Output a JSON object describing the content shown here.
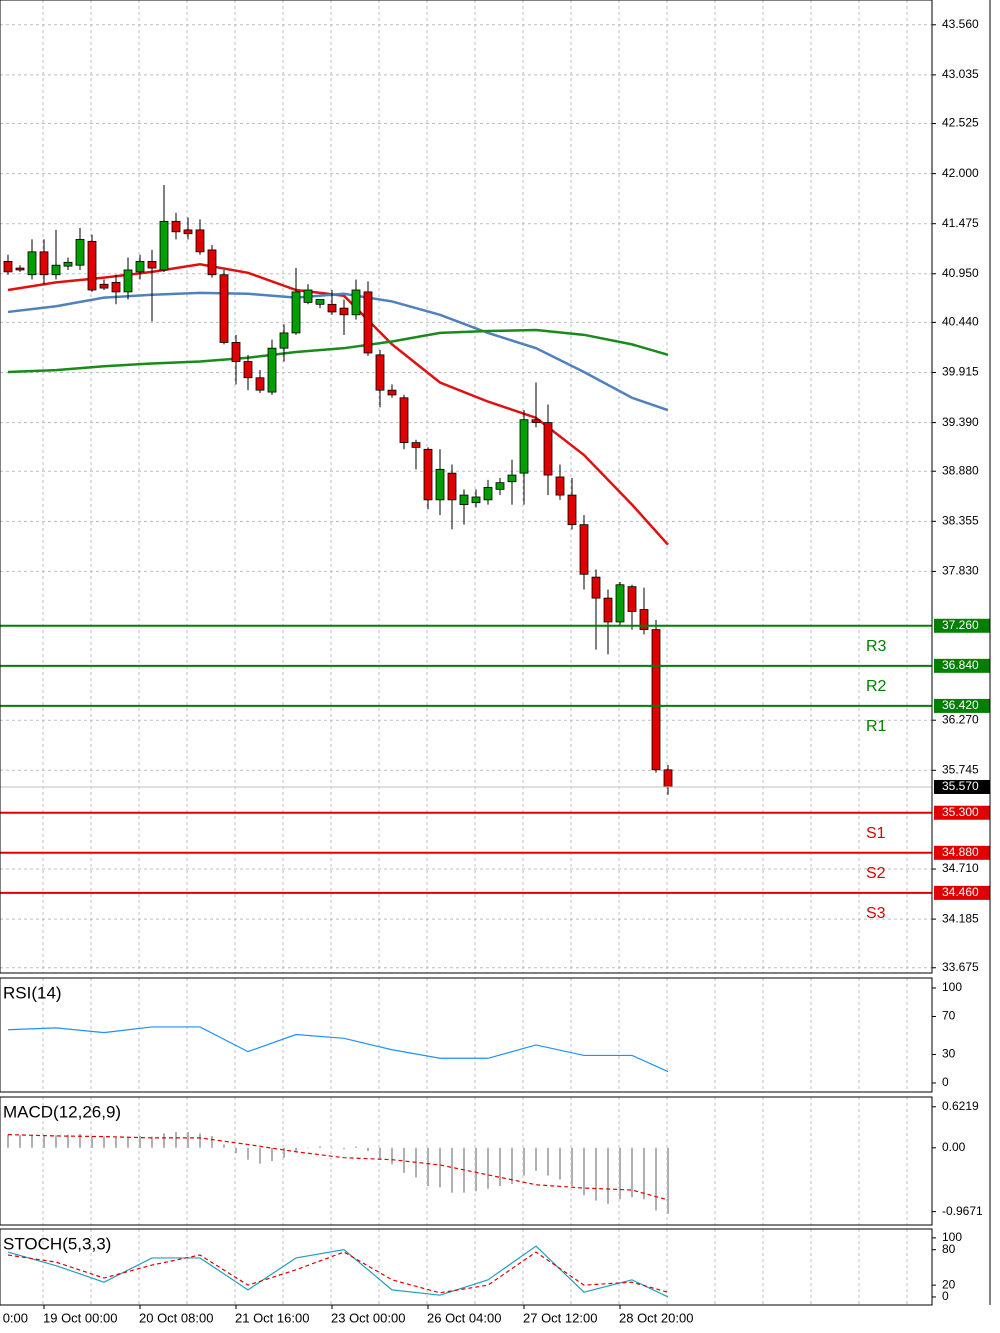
{
  "chart_data": [
    {
      "type": "candlestick",
      "categories": [
        null,
        null,
        null,
        "19 Oct 00:00",
        null,
        null,
        null,
        null,
        null,
        null,
        null,
        "20 Oct 08:00",
        null,
        null,
        null,
        null,
        null,
        null,
        null,
        "21 Oct 16:00",
        null,
        null,
        null,
        null,
        null,
        null,
        null,
        "23 Oct 00:00",
        null,
        null,
        null,
        null,
        null,
        null,
        null,
        "26 Oct 04:00",
        null,
        null,
        null,
        null,
        null,
        null,
        null,
        "27 Oct 12:00",
        null,
        null,
        null,
        null,
        null,
        null,
        null,
        "28 Oct 20:00",
        null,
        null,
        null,
        null
      ],
      "clipped_label": "0:00",
      "open": [
        41.08,
        41.01,
        40.94,
        41.18,
        40.94,
        41.03,
        41.04,
        41.29,
        40.84,
        40.86,
        40.76,
        40.97,
        41.08,
        40.99,
        41.5,
        41.41,
        41.41,
        41.2,
        40.94,
        40.23,
        40.03,
        39.86,
        39.71,
        40.17,
        40.33,
        40.65,
        40.63,
        40.63,
        40.59,
        40.52,
        40.76,
        40.1,
        39.73,
        39.65,
        39.18,
        39.11,
        38.58,
        38.86,
        38.53,
        38.55,
        38.58,
        38.69,
        38.77,
        38.86,
        39.42,
        39.39,
        38.82,
        38.63,
        38.32,
        37.77,
        37.55,
        37.3,
        37.67,
        37.43,
        37.22,
        35.75
      ],
      "high": [
        41.15,
        41.04,
        41.31,
        41.31,
        41.41,
        41.12,
        41.43,
        41.36,
        40.89,
        40.94,
        41.12,
        41.15,
        41.2,
        41.88,
        41.59,
        41.54,
        41.52,
        41.25,
        40.99,
        40.31,
        40.1,
        39.94,
        40.26,
        40.42,
        41.01,
        40.84,
        40.68,
        40.78,
        40.68,
        40.89,
        40.87,
        40.15,
        39.79,
        39.68,
        39.21,
        39.13,
        39.11,
        38.95,
        38.69,
        38.69,
        38.79,
        38.81,
        39.0,
        39.52,
        39.81,
        39.58,
        38.95,
        38.81,
        38.42,
        37.85,
        37.64,
        37.72,
        37.69,
        37.66,
        37.32,
        35.8
      ],
      "low": [
        40.94,
        40.97,
        40.89,
        40.84,
        40.89,
        40.99,
        40.99,
        40.76,
        40.78,
        40.63,
        40.68,
        40.89,
        40.45,
        40.97,
        41.31,
        41.31,
        41.15,
        40.91,
        40.21,
        39.79,
        39.73,
        39.7,
        39.68,
        40.03,
        40.31,
        40.63,
        40.59,
        40.52,
        40.31,
        40.47,
        40.09,
        39.55,
        39.65,
        39.11,
        38.9,
        38.48,
        38.42,
        38.27,
        38.32,
        38.5,
        38.53,
        38.63,
        38.53,
        38.53,
        39.34,
        38.63,
        38.58,
        38.27,
        37.64,
        37.01,
        36.96,
        37.27,
        37.22,
        37.17,
        35.72,
        35.49
      ],
      "close": [
        40.97,
        40.99,
        41.18,
        40.94,
        41.04,
        41.07,
        41.31,
        40.78,
        40.8,
        40.76,
        40.99,
        41.08,
        41.01,
        41.5,
        41.39,
        41.37,
        41.18,
        40.94,
        40.23,
        40.03,
        39.86,
        39.73,
        40.17,
        40.33,
        40.76,
        40.78,
        40.68,
        40.55,
        40.52,
        40.78,
        40.12,
        39.73,
        39.68,
        39.18,
        39.13,
        38.58,
        38.9,
        38.58,
        38.63,
        38.61,
        38.71,
        38.76,
        38.84,
        39.42,
        39.39,
        38.84,
        38.63,
        38.32,
        37.8,
        37.55,
        37.3,
        37.69,
        37.41,
        37.22,
        35.75,
        35.57
      ],
      "up_color": "#00a000",
      "down_color": "#e00000",
      "moving_averages": [
        {
          "color": "#e01010",
          "x": [
            0,
            4,
            8,
            12,
            16,
            20,
            24,
            28,
            32,
            36,
            40,
            44,
            48,
            52,
            55
          ],
          "values": [
            40.78,
            40.86,
            40.91,
            40.97,
            41.05,
            40.96,
            40.78,
            40.72,
            40.21,
            39.81,
            39.61,
            39.44,
            39.05,
            38.53,
            38.11
          ]
        },
        {
          "color": "#4f81bd",
          "x": [
            0,
            4,
            8,
            12,
            16,
            20,
            24,
            28,
            32,
            36,
            40,
            44,
            48,
            52,
            55
          ],
          "values": [
            40.55,
            40.61,
            40.7,
            40.73,
            40.75,
            40.74,
            40.7,
            40.74,
            40.66,
            40.52,
            40.33,
            40.17,
            39.92,
            39.65,
            39.52
          ]
        },
        {
          "color": "#1a8a1a",
          "x": [
            0,
            4,
            8,
            12,
            16,
            20,
            24,
            28,
            32,
            36,
            40,
            44,
            48,
            52,
            55
          ],
          "values": [
            39.92,
            39.94,
            39.98,
            40.01,
            40.03,
            40.07,
            40.13,
            40.17,
            40.24,
            40.33,
            40.35,
            40.36,
            40.31,
            40.21,
            40.1
          ]
        }
      ],
      "levels": [
        {
          "label": "R3",
          "value": 37.26,
          "value_label": "37.260",
          "color": "#008000"
        },
        {
          "label": "R2",
          "value": 36.84,
          "value_label": "36.840",
          "color": "#008000"
        },
        {
          "label": "R1",
          "value": 36.42,
          "value_label": "36.420",
          "color": "#008000"
        },
        {
          "label": "S1",
          "value": 35.3,
          "value_label": "35.300",
          "color": "#e00000"
        },
        {
          "label": "S2",
          "value": 34.88,
          "value_label": "34.880",
          "color": "#e00000"
        },
        {
          "label": "S3",
          "value": 34.46,
          "value_label": "34.460",
          "color": "#e00000"
        }
      ],
      "last": 35.57,
      "last_label": "35.570",
      "ylim": [
        33.62,
        43.82
      ],
      "yticks": [
        {
          "value": 43.56,
          "label": "43.560"
        },
        43.035,
        42.525,
        {
          "value": 42,
          "label": "42.000"
        },
        41.475,
        {
          "value": 40.95,
          "label": "40.950"
        },
        {
          "value": 40.44,
          "label": "40.440"
        },
        39.915,
        {
          "value": 39.39,
          "label": "39.390"
        },
        {
          "value": 38.88,
          "label": "38.880"
        },
        38.355,
        {
          "value": 37.83,
          "label": "37.830"
        },
        {
          "value": 36.27,
          "label": "36.270"
        },
        35.745,
        {
          "value": 34.71,
          "label": "34.710"
        },
        34.185,
        33.675
      ],
      "grid": true
    },
    {
      "type": "line",
      "title": "RSI(14)",
      "ylim": [
        -9.5,
        110.5
      ],
      "yticks": [
        100,
        70,
        30,
        0
      ],
      "series": [
        {
          "color": "#1e90ff",
          "x": [
            0,
            4,
            8,
            12,
            16,
            20,
            24,
            28,
            32,
            36,
            40,
            44,
            48,
            52,
            55
          ],
          "values": [
            56,
            58,
            53,
            59,
            59,
            33,
            51,
            47,
            35,
            26,
            26,
            40,
            29,
            29,
            12
          ]
        }
      ]
    },
    {
      "type": "bar",
      "title": "MACD(12,26,9)",
      "ylim": [
        -1.17,
        0.77
      ],
      "yticks": [
        0.6219,
        {
          "value": 0,
          "label": "0.00"
        },
        -0.9671
      ],
      "series": [
        {
          "type": "bar",
          "color": "#b0b0b0",
          "values": [
            0.2,
            0.19,
            0.2,
            0.19,
            0.19,
            0.2,
            0.21,
            0.18,
            0.17,
            0.16,
            0.17,
            0.18,
            0.17,
            0.22,
            0.24,
            0.24,
            0.22,
            0.18,
            0.05,
            -0.08,
            -0.18,
            -0.24,
            -0.2,
            -0.15,
            -0.05,
            0.0,
            0.02,
            0.0,
            -0.02,
            0.02,
            -0.05,
            -0.18,
            -0.25,
            -0.38,
            -0.45,
            -0.58,
            -0.6,
            -0.68,
            -0.68,
            -0.66,
            -0.62,
            -0.58,
            -0.55,
            -0.42,
            -0.35,
            -0.42,
            -0.48,
            -0.58,
            -0.72,
            -0.8,
            -0.85,
            -0.78,
            -0.75,
            -0.78,
            -0.95,
            -1.0
          ]
        },
        {
          "type": "line",
          "color": "#e00000",
          "dash": true,
          "x": [
            0,
            4,
            8,
            12,
            16,
            20,
            24,
            28,
            32,
            36,
            40,
            44,
            48,
            52,
            55
          ],
          "values": [
            0.2,
            0.18,
            0.17,
            0.15,
            0.15,
            0.05,
            -0.06,
            -0.15,
            -0.18,
            -0.26,
            -0.41,
            -0.56,
            -0.61,
            -0.64,
            -0.79
          ]
        }
      ]
    },
    {
      "type": "line",
      "title": "STOCH(5,3,3)",
      "ylim": [
        -13.6,
        115
      ],
      "yticks": [
        100,
        80,
        20,
        0
      ],
      "series": [
        {
          "color": "#20a0c0",
          "x": [
            0,
            4,
            8,
            12,
            16,
            20,
            24,
            28,
            32,
            36,
            40,
            44,
            48,
            52,
            55
          ],
          "values": [
            76,
            53,
            25,
            66,
            66,
            12,
            66,
            80,
            12,
            3,
            29,
            86,
            8,
            29,
            0
          ]
        },
        {
          "color": "#e00000",
          "dash": true,
          "x": [
            0,
            4,
            8,
            12,
            16,
            20,
            24,
            28,
            32,
            36,
            40,
            44,
            48,
            52,
            55
          ],
          "values": [
            71,
            59,
            32,
            54,
            71,
            20,
            46,
            76,
            29,
            7,
            20,
            76,
            20,
            25,
            8
          ]
        }
      ]
    }
  ]
}
